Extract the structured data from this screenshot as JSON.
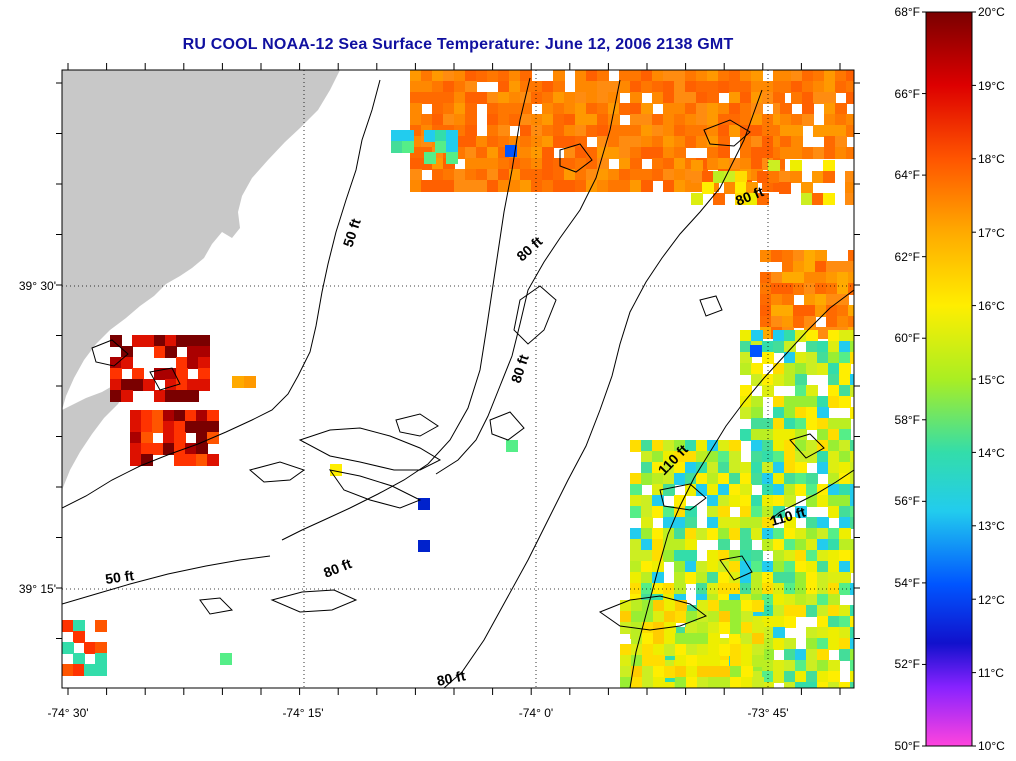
{
  "title": "RU COOL  NOAA-12  Sea Surface Temperature:  June 12, 2006 2138 GMT",
  "map": {
    "lon_labels": [
      "-74° 30'",
      "-74° 15'",
      "-74° 0'",
      "-73° 45'"
    ],
    "lat_labels": [
      "39° 30'",
      "39° 15'"
    ],
    "contour_labels": [
      "50 ft",
      "50 ft",
      "80 ft",
      "80 ft",
      "80 ft",
      "80 ft",
      "80 ft",
      "110 ft",
      "110 ft"
    ],
    "colors": {
      "land": "#c8c8c8",
      "ocean_no_data": "#ffffff",
      "contour": "#000000",
      "title": "#1010a0"
    }
  },
  "colorbar": {
    "fahrenheit_labels": [
      "68°F",
      "66°F",
      "64°F",
      "62°F",
      "60°F",
      "58°F",
      "56°F",
      "54°F",
      "52°F",
      "50°F"
    ],
    "celsius_labels": [
      "20°C",
      "19°C",
      "18°C",
      "17°C",
      "16°C",
      "15°C",
      "14°C",
      "13°C",
      "12°C",
      "11°C",
      "10°C"
    ],
    "stops": [
      "#7a0000",
      "#dd0000",
      "#ff5500",
      "#ffaa00",
      "#ffee00",
      "#aaee22",
      "#33ddaa",
      "#22ccee",
      "#0055ff",
      "#1111cc",
      "#8822ff",
      "#ff44dd"
    ]
  }
}
